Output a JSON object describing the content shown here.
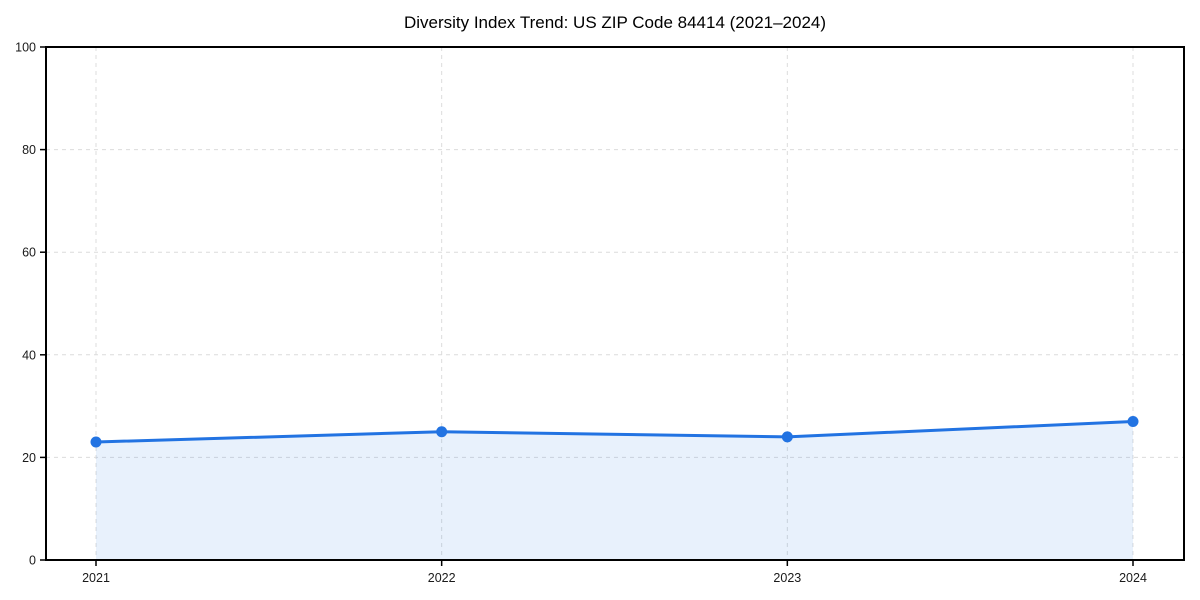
{
  "chart_data": {
    "type": "area",
    "title": "Diversity Index Trend: US ZIP Code 84414 (2021–2024)",
    "categories": [
      "2021",
      "2022",
      "2023",
      "2024"
    ],
    "series": [
      {
        "name": "Diversity Index",
        "values": [
          23,
          25,
          24,
          27
        ]
      }
    ],
    "xlabel": "",
    "ylabel": "",
    "ylim": [
      0,
      100
    ],
    "y_ticks": [
      0,
      20,
      40,
      60,
      80,
      100
    ],
    "grid": true,
    "grid_style": "dashed",
    "legend": false,
    "colors": {
      "line": "#2273e2",
      "marker": "#2273e2",
      "fill": "#2273e2",
      "fill_opacity": 0.1,
      "axis": "#000000",
      "grid": "#dcdcdc",
      "tick_text": "#1a1a1a",
      "background": "#ffffff"
    }
  }
}
